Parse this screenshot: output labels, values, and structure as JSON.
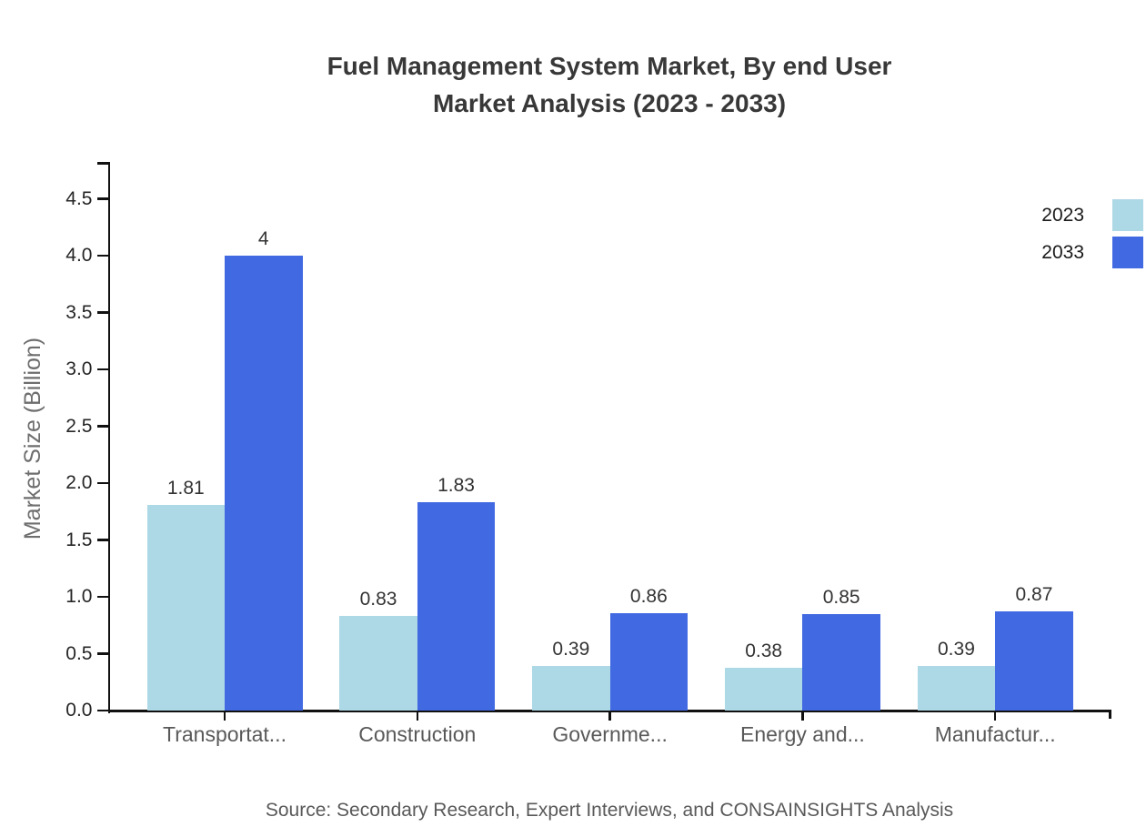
{
  "title": {
    "line1": "Fuel Management System Market, By end User",
    "line2": "Market Analysis (2023 - 2033)"
  },
  "legend": {
    "items": [
      {
        "label": "2023",
        "color": "#ADD8E6"
      },
      {
        "label": "2033",
        "color": "#4169E1"
      }
    ]
  },
  "source": "Source: Secondary Research, Expert Interviews, and CONSAINSIGHTS Analysis",
  "chart_data": {
    "type": "bar",
    "title": "Fuel Management System Market, By end User Market Analysis (2023 - 2033)",
    "categories": [
      "Transportat...",
      "Construction",
      "Governme...",
      "Energy and...",
      "Manufactur..."
    ],
    "series": [
      {
        "name": "2023",
        "color": "#ADD8E6",
        "values": [
          1.81,
          0.83,
          0.39,
          0.38,
          0.39
        ],
        "labels": [
          "1.81",
          "0.83",
          "0.39",
          "0.38",
          "0.39"
        ]
      },
      {
        "name": "2033",
        "color": "#4169E1",
        "values": [
          4,
          1.83,
          0.86,
          0.85,
          0.87
        ],
        "labels": [
          "4",
          "1.83",
          "0.86",
          "0.85",
          "0.87"
        ]
      }
    ],
    "xlabel": "",
    "ylabel": "Market Size (Billion)",
    "ylim": [
      0,
      4.8
    ],
    "yticks": [
      "0.0",
      "0.5",
      "1.0",
      "1.5",
      "2.0",
      "2.5",
      "3.0",
      "3.5",
      "4.0",
      "4.5"
    ],
    "grid": false,
    "legend_position": "right"
  }
}
